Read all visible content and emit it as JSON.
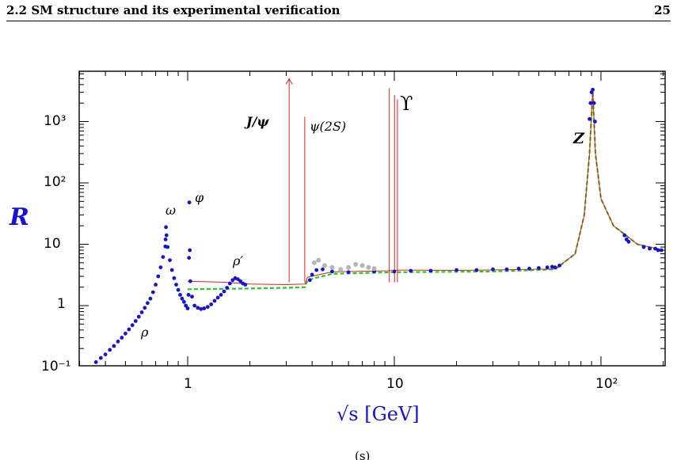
{
  "header": {
    "section": "2.2 SM structure and its experimental verification",
    "page": "25"
  },
  "footer_fragment": "(s)",
  "chart_data": {
    "type": "scatter",
    "xscale": "log",
    "yscale": "log",
    "xlim": [
      0.3,
      200
    ],
    "ylim": [
      0.1,
      5000
    ],
    "xlabel": "√s [GeV]",
    "ylabel": "R",
    "x_ticks": [
      "1",
      "10",
      "10²"
    ],
    "y_ticks": [
      "10⁻¹",
      "1",
      "10",
      "10²",
      "10³"
    ],
    "annotations": [
      "ρ",
      "ω",
      "φ",
      "ρ′",
      "J/ψ",
      "ψ(2S)",
      "ϒ",
      "Z"
    ],
    "series": [
      {
        "color": "#1414d8",
        "points": [
          [
            0.36,
            0.12
          ],
          [
            0.38,
            0.14
          ],
          [
            0.4,
            0.16
          ],
          [
            0.42,
            0.19
          ],
          [
            0.44,
            0.22
          ],
          [
            0.46,
            0.26
          ],
          [
            0.48,
            0.3
          ],
          [
            0.5,
            0.35
          ],
          [
            0.52,
            0.41
          ],
          [
            0.54,
            0.48
          ],
          [
            0.56,
            0.56
          ],
          [
            0.58,
            0.66
          ],
          [
            0.6,
            0.78
          ],
          [
            0.62,
            0.92
          ],
          [
            0.64,
            1.1
          ],
          [
            0.66,
            1.3
          ],
          [
            0.68,
            1.65
          ],
          [
            0.7,
            2.2
          ],
          [
            0.72,
            3.0
          ],
          [
            0.74,
            4.2
          ],
          [
            0.76,
            6.2
          ],
          [
            0.78,
            9.2
          ],
          [
            0.782,
            12
          ],
          [
            0.785,
            19
          ],
          [
            0.79,
            14
          ],
          [
            0.8,
            9
          ],
          [
            0.82,
            5.5
          ],
          [
            0.84,
            3.8
          ],
          [
            0.86,
            2.8
          ],
          [
            0.88,
            2.2
          ],
          [
            0.9,
            1.8
          ],
          [
            0.92,
            1.5
          ],
          [
            0.94,
            1.3
          ],
          [
            0.96,
            1.15
          ],
          [
            0.98,
            1.0
          ],
          [
            1.0,
            0.9
          ],
          [
            1.01,
            1.5
          ],
          [
            1.015,
            6
          ],
          [
            1.019,
            48
          ],
          [
            1.024,
            8
          ],
          [
            1.03,
            2.5
          ],
          [
            1.05,
            1.4
          ],
          [
            1.08,
            1.0
          ],
          [
            1.12,
            0.92
          ],
          [
            1.16,
            0.88
          ],
          [
            1.2,
            0.9
          ],
          [
            1.25,
            0.95
          ],
          [
            1.3,
            1.05
          ],
          [
            1.35,
            1.2
          ],
          [
            1.4,
            1.35
          ],
          [
            1.45,
            1.5
          ],
          [
            1.5,
            1.7
          ],
          [
            1.55,
            1.95
          ],
          [
            1.6,
            2.3
          ],
          [
            1.65,
            2.6
          ],
          [
            1.7,
            2.8
          ],
          [
            1.75,
            2.7
          ],
          [
            1.8,
            2.5
          ],
          [
            1.85,
            2.3
          ],
          [
            1.9,
            2.2
          ],
          [
            3.9,
            2.6
          ],
          [
            4.0,
            3.2
          ],
          [
            4.2,
            3.8
          ],
          [
            4.5,
            3.9
          ],
          [
            5,
            3.6
          ],
          [
            6,
            3.5
          ],
          [
            8,
            3.6
          ],
          [
            10,
            3.6
          ],
          [
            12,
            3.7
          ],
          [
            15,
            3.7
          ],
          [
            20,
            3.8
          ],
          [
            25,
            3.8
          ],
          [
            30,
            3.9
          ],
          [
            35,
            3.9
          ],
          [
            40,
            4.0
          ],
          [
            45,
            4.0
          ],
          [
            50,
            4.1
          ],
          [
            55,
            4.2
          ],
          [
            58,
            4.3
          ],
          [
            60,
            4.2
          ],
          [
            63,
            4.5
          ],
          [
            88,
            1100
          ],
          [
            89,
            2000
          ],
          [
            90,
            3000
          ],
          [
            91.2,
            3300
          ],
          [
            92.5,
            2000
          ],
          [
            93.5,
            1000
          ],
          [
            130,
            14
          ],
          [
            133,
            12
          ],
          [
            136,
            11
          ],
          [
            161,
            9
          ],
          [
            172,
            8.5
          ],
          [
            183,
            8.5
          ],
          [
            189,
            8
          ],
          [
            196,
            8
          ]
        ]
      },
      {
        "color": "#b4b4b4",
        "points": [
          [
            4.1,
            5
          ],
          [
            4.3,
            5.5
          ],
          [
            4.6,
            4.5
          ],
          [
            5.0,
            4.2
          ],
          [
            5.5,
            3.9
          ],
          [
            6,
            4.2
          ],
          [
            6.5,
            4.7
          ],
          [
            7,
            4.5
          ],
          [
            7.5,
            4.2
          ],
          [
            8,
            4.0
          ]
        ]
      }
    ],
    "curves": [
      {
        "style": "green-dashed",
        "points": [
          [
            1,
            1.85
          ],
          [
            2,
            1.9
          ],
          [
            3,
            1.95
          ],
          [
            3.7,
            2.0
          ],
          [
            3.8,
            2.6
          ],
          [
            5,
            3.3
          ],
          [
            10,
            3.5
          ],
          [
            30,
            3.6
          ],
          [
            60,
            3.9
          ],
          [
            75,
            7
          ],
          [
            83,
            30
          ],
          [
            88,
            300
          ],
          [
            91.2,
            3100
          ],
          [
            94,
            300
          ],
          [
            100,
            55
          ],
          [
            115,
            20
          ],
          [
            150,
            10
          ],
          [
            200,
            8
          ]
        ]
      },
      {
        "style": "red-solid",
        "points": [
          [
            1,
            2.5
          ],
          [
            1.5,
            2.4
          ],
          [
            2,
            2.25
          ],
          [
            3,
            2.2
          ],
          [
            3.7,
            2.25
          ],
          [
            3.8,
            2.9
          ],
          [
            5,
            3.55
          ],
          [
            9.3,
            3.7
          ],
          [
            10.8,
            3.8
          ],
          [
            20,
            3.75
          ],
          [
            60,
            3.95
          ],
          [
            75,
            7
          ],
          [
            83,
            30
          ],
          [
            88,
            300
          ],
          [
            91.2,
            3100
          ],
          [
            94,
            300
          ],
          [
            100,
            55
          ],
          [
            115,
            20
          ],
          [
            150,
            10
          ],
          [
            200,
            8
          ]
        ]
      }
    ],
    "spikes": [
      {
        "x": 3.097,
        "top": 5000,
        "arrow": true
      },
      {
        "x": 3.686,
        "top": 1200
      },
      {
        "x": 9.46,
        "top": 3500
      },
      {
        "x": 10.02,
        "top": 2700
      },
      {
        "x": 10.35,
        "top": 2300
      }
    ]
  }
}
